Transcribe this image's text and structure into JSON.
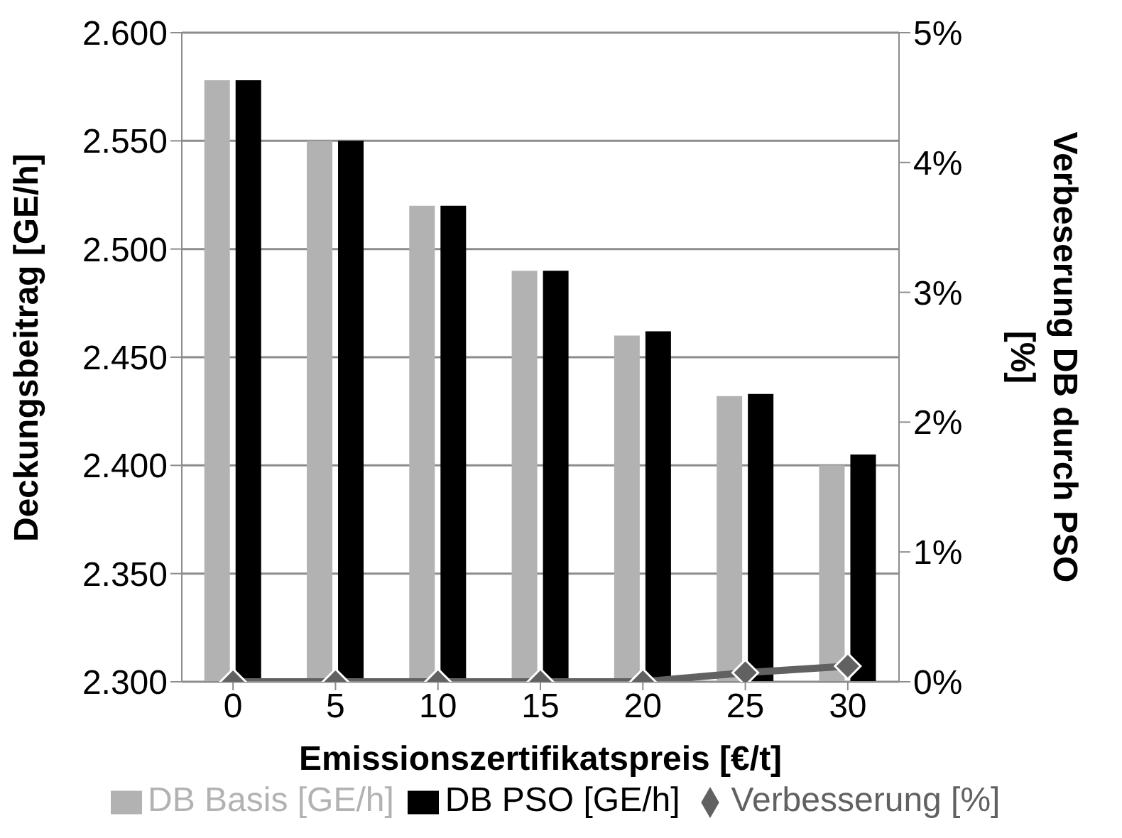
{
  "chart_data": {
    "type": "bar",
    "xlabel": "Emissionszertifikatspreis [€/t]",
    "ylabel": "Deckungsbeitrag [GE/h]",
    "y2label": "Verbeserung DB durch PSO [%]",
    "categories": [
      "0",
      "5",
      "10",
      "15",
      "20",
      "25",
      "30"
    ],
    "series": [
      {
        "name": "DB Basis [GE/h]",
        "color": "#b2b2b2",
        "values": [
          2578,
          2550,
          2520,
          2490,
          2460,
          2432,
          2400
        ]
      },
      {
        "name": "DB PSO [GE/h]",
        "color": "#000000",
        "values": [
          2578,
          2550,
          2520,
          2490,
          2462,
          2433,
          2405
        ]
      },
      {
        "name": "Verbesserung [%]",
        "type": "line",
        "axis": "y2",
        "color": "#616161",
        "marker": "diamond",
        "values": [
          0,
          0,
          0,
          0,
          0,
          0.07,
          0.12
        ]
      }
    ],
    "ylim": [
      2300,
      2600
    ],
    "yticks": [
      {
        "value": 2300,
        "label": "2.300"
      },
      {
        "value": 2350,
        "label": "2.350"
      },
      {
        "value": 2400,
        "label": "2.400"
      },
      {
        "value": 2450,
        "label": "2.450"
      },
      {
        "value": 2500,
        "label": "2.500"
      },
      {
        "value": 2550,
        "label": "2.550"
      },
      {
        "value": 2600,
        "label": "2.600"
      }
    ],
    "y2lim": [
      0,
      5
    ],
    "y2ticks": [
      {
        "value": 0,
        "label": "0%"
      },
      {
        "value": 1,
        "label": "1%"
      },
      {
        "value": 2,
        "label": "2%"
      },
      {
        "value": 3,
        "label": "3%"
      },
      {
        "value": 4,
        "label": "4%"
      },
      {
        "value": 5,
        "label": "5%"
      }
    ],
    "grid": "y",
    "legend": "bottom"
  }
}
